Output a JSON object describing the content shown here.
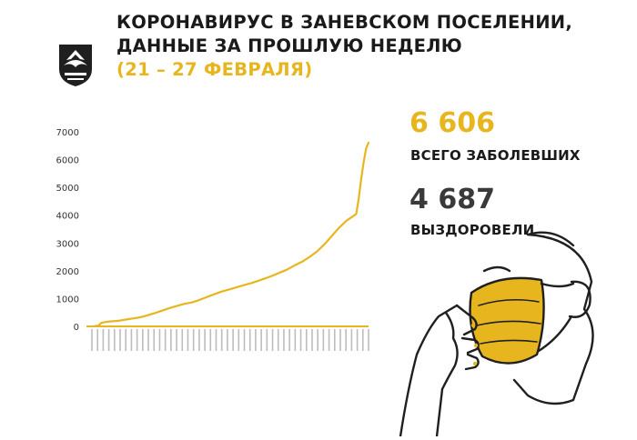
{
  "header": {
    "title_line1": "КОРОНАВИРУС В ЗАНЕВСКОМ ПОСЕЛЕНИИ,",
    "title_line2": "ДАННЫЕ ЗА ПРОШЛУЮ НЕДЕЛЮ",
    "date_range": "(21 – 27 ФЕВРАЛЯ)"
  },
  "stats": {
    "total_value": "6 606",
    "total_label": "ВСЕГО ЗАБОЛЕВШИХ",
    "recovered_value": "4 687",
    "recovered_label": "ВЫЗДОРОВЕЛИ"
  },
  "colors": {
    "accent": "#e7b61f",
    "text": "#1a1a1a",
    "axis": "#d0d0d0"
  },
  "icons": {
    "crest": "municipal-crest-icon",
    "illustration": "face-mask-illustration"
  },
  "chart_data": {
    "type": "line",
    "title": "",
    "xlabel": "",
    "ylabel": "",
    "ylim": [
      0,
      7000
    ],
    "yticks": [
      0,
      1000,
      2000,
      3000,
      4000,
      5000,
      6000,
      7000
    ],
    "grid": false,
    "x_tick_count": 50,
    "series": [
      {
        "color": "#e7b61f",
        "points": [
          [
            0,
            0
          ],
          [
            2,
            30
          ],
          [
            3,
            120
          ],
          [
            5,
            160
          ],
          [
            7,
            180
          ],
          [
            10,
            200
          ],
          [
            12,
            230
          ],
          [
            15,
            270
          ],
          [
            18,
            310
          ],
          [
            20,
            350
          ],
          [
            22,
            400
          ],
          [
            25,
            480
          ],
          [
            28,
            570
          ],
          [
            31,
            660
          ],
          [
            34,
            740
          ],
          [
            37,
            810
          ],
          [
            40,
            860
          ],
          [
            43,
            950
          ],
          [
            46,
            1050
          ],
          [
            49,
            1150
          ],
          [
            52,
            1250
          ],
          [
            55,
            1320
          ],
          [
            58,
            1400
          ],
          [
            61,
            1480
          ],
          [
            64,
            1550
          ],
          [
            67,
            1640
          ],
          [
            70,
            1730
          ],
          [
            73,
            1830
          ],
          [
            76,
            1940
          ],
          [
            79,
            2050
          ],
          [
            82,
            2200
          ],
          [
            85,
            2330
          ],
          [
            88,
            2500
          ],
          [
            91,
            2700
          ],
          [
            94,
            2950
          ],
          [
            97,
            3250
          ],
          [
            100,
            3550
          ],
          [
            103,
            3800
          ],
          [
            106,
            3980
          ],
          [
            107,
            4050
          ],
          [
            108,
            4600
          ],
          [
            109,
            5300
          ],
          [
            110,
            5900
          ],
          [
            111,
            6400
          ],
          [
            112,
            6606
          ]
        ]
      }
    ]
  }
}
